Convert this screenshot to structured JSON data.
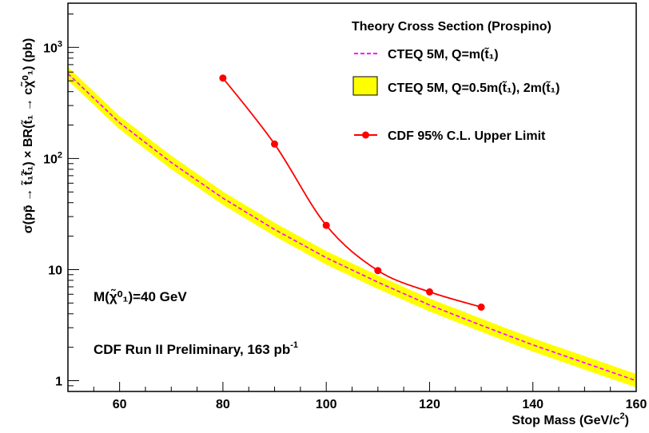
{
  "chart_data": {
    "type": "line",
    "xlabel": "Stop Mass (GeV/c",
    "xlabel_sup": "2",
    "xlabel_end": ")",
    "ylabel": "σ(pp̄ → t̃₁t̃̄₁) × BR(t̃₁ → cχ̃⁰₁) (pb)",
    "xlim": [
      50,
      160
    ],
    "ylim": [
      0.8,
      2500
    ],
    "yscale": "log",
    "x_ticks": [
      60,
      80,
      100,
      120,
      140,
      160
    ],
    "y_tick_labels": [
      {
        "value": 1,
        "base": "1",
        "exp": ""
      },
      {
        "value": 10,
        "base": "10",
        "exp": ""
      },
      {
        "value": 100,
        "base": "10",
        "exp": "2"
      },
      {
        "value": 1000,
        "base": "10",
        "exp": "3"
      }
    ],
    "legend": {
      "title": "Theory Cross Section (Prospino)",
      "entries": [
        {
          "label": "CTEQ 5M, Q=m(t̃₁)",
          "style": "dashed-line",
          "color": "#ff00ff"
        },
        {
          "label": "CTEQ 5M, Q=0.5m(t̃₁), 2m(t̃₁)",
          "style": "band",
          "color": "#ffff00"
        },
        {
          "label": "CDF 95% C.L. Upper Limit",
          "style": "line-marker",
          "color": "#ff0000"
        }
      ]
    },
    "series": [
      {
        "name": "CTEQ 5M, Q=m(t̃₁)",
        "x": [
          50,
          60,
          70,
          80,
          90,
          100,
          110,
          120,
          130,
          140,
          150,
          160
        ],
        "y": [
          580,
          210,
          92,
          44,
          23,
          12.8,
          7.7,
          4.8,
          3.15,
          2.1,
          1.45,
          1.0
        ]
      },
      {
        "name": "CTEQ 5M, Q=0.5m(t̃₁), 2m(t̃₁)",
        "x": [
          50,
          60,
          70,
          80,
          90,
          100,
          110,
          120,
          130,
          140,
          150,
          160
        ],
        "y_low": [
          505,
          183,
          80,
          38.3,
          20,
          11.1,
          6.7,
          4.2,
          2.75,
          1.83,
          1.26,
          0.87
        ],
        "y_high": [
          666,
          241,
          106,
          50.5,
          26.4,
          14.7,
          8.85,
          5.5,
          3.62,
          2.41,
          1.67,
          1.15
        ]
      },
      {
        "name": "CDF 95% C.L. Upper Limit",
        "x": [
          80,
          90,
          100,
          110,
          120,
          130
        ],
        "y": [
          530,
          135,
          25,
          9.8,
          6.3,
          4.6
        ]
      }
    ],
    "annotations": {
      "neutralino_mass": "M(χ̃⁰₁)=40 GeV",
      "luminosity_text": "CDF Run II Preliminary, 163 pb",
      "luminosity_sup": "-1"
    },
    "grid": false
  }
}
